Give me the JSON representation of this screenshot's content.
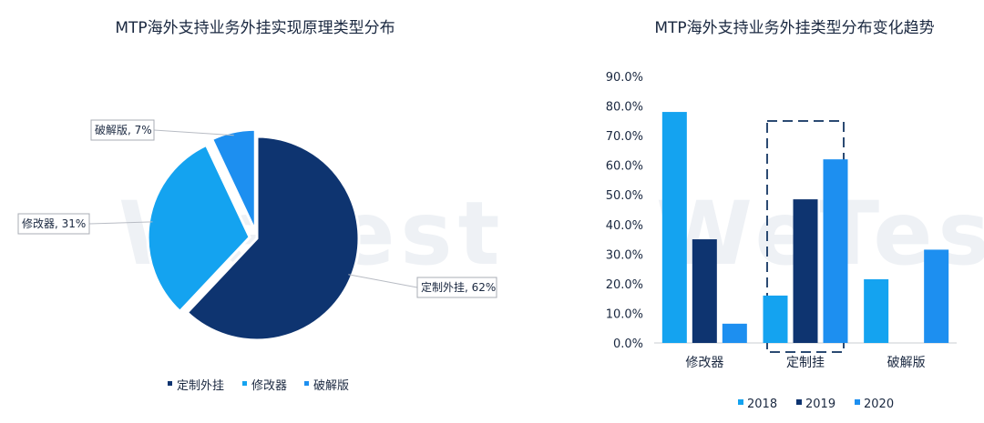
{
  "watermark": "WeTest",
  "chart_data": [
    {
      "type": "pie",
      "title": "MTP海外支持业务外挂实现原理类型分布",
      "slices": [
        {
          "name": "定制外挂",
          "value": 62,
          "label": "定制外挂, 62%",
          "color": "#0e3470"
        },
        {
          "name": "修改器",
          "value": 31,
          "label": "修改器, 31%",
          "color": "#14a3f0"
        },
        {
          "name": "破解版",
          "value": 7,
          "label": "破解版, 7%",
          "color": "#1d8ff0"
        }
      ],
      "legend": [
        "定制外挂",
        "修改器",
        "破解版"
      ],
      "legend_position": "bottom"
    },
    {
      "type": "bar",
      "title": "MTP海外支持业务外挂类型分布变化趋势",
      "categories": [
        "修改器",
        "定制挂",
        "破解版"
      ],
      "series": [
        {
          "name": "2018",
          "values": [
            78.0,
            16.0,
            21.5
          ],
          "color": "#14a3f0"
        },
        {
          "name": "2019",
          "values": [
            35.0,
            48.5,
            0
          ],
          "color": "#0e3470"
        },
        {
          "name": "2020",
          "values": [
            6.5,
            62.0,
            31.5
          ],
          "color": "#1d8ff0"
        }
      ],
      "ylim": [
        0,
        90
      ],
      "yticks": [
        "0.0%",
        "10.0%",
        "20.0%",
        "30.0%",
        "40.0%",
        "50.0%",
        "60.0%",
        "70.0%",
        "80.0%",
        "90.0%"
      ],
      "highlight_category": "定制挂",
      "legend_position": "bottom"
    }
  ]
}
